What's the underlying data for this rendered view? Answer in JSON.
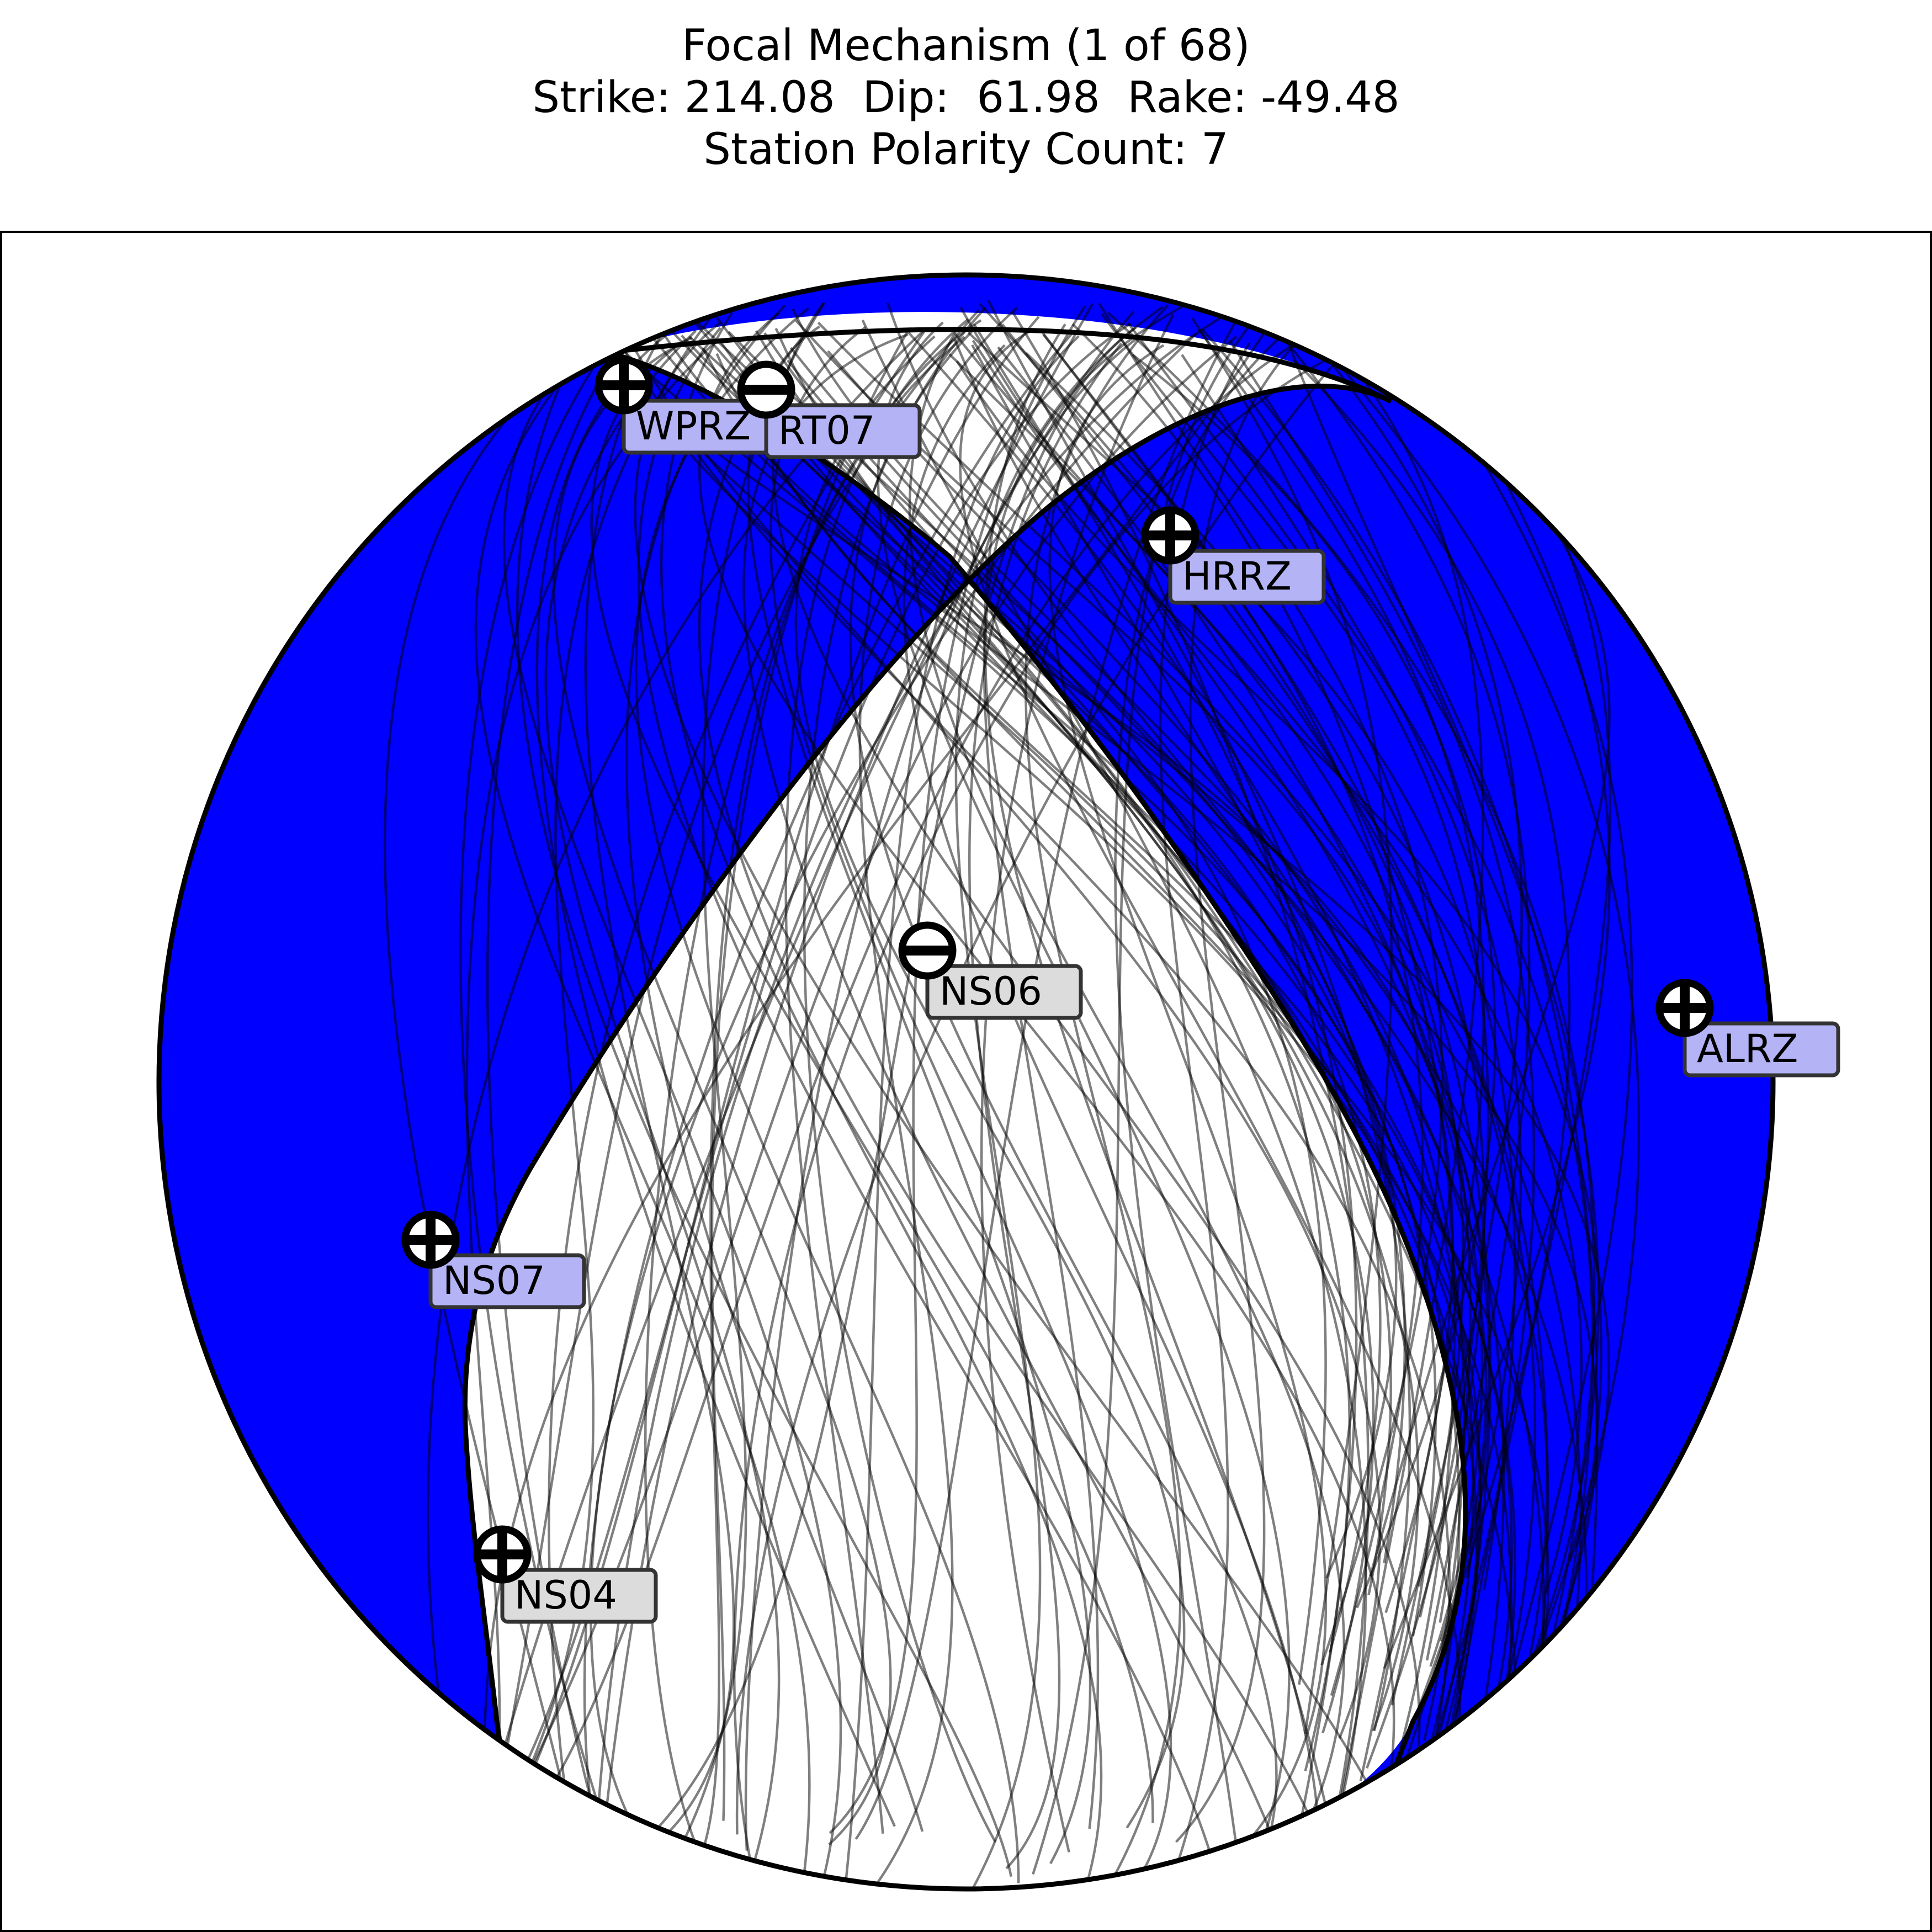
{
  "title": {
    "line1": "Focal Mechanism (1 of 68)",
    "line2": "Strike: 214.08  Dip:  61.98  Rake: -49.48",
    "line3": "Station Polarity Count: 7"
  },
  "colors": {
    "compression_fill": "#0000ff",
    "dilatation_fill": "#ffffff",
    "label_bg_blue": "#b3b3f5",
    "label_bg_white": "#dcdcdc",
    "nodal_line": "#000000"
  },
  "mechanism": {
    "strike": 214.08,
    "dip": 61.98,
    "rake": -49.48,
    "solutions_count": 68
  },
  "stations": [
    {
      "name": "WPRZ",
      "polarity": "+",
      "symbol": "plus-circle-icon"
    },
    {
      "name": "RT07",
      "polarity": "-",
      "symbol": "minus-circle-icon"
    },
    {
      "name": "HRRZ",
      "polarity": "+",
      "symbol": "plus-circle-icon"
    },
    {
      "name": "NS06",
      "polarity": "-",
      "symbol": "minus-circle-icon"
    },
    {
      "name": "ALRZ",
      "polarity": "+",
      "symbol": "plus-circle-icon"
    },
    {
      "name": "NS07",
      "polarity": "+",
      "symbol": "plus-circle-icon"
    },
    {
      "name": "NS04",
      "polarity": "+",
      "symbol": "plus-circle-icon"
    }
  ]
}
